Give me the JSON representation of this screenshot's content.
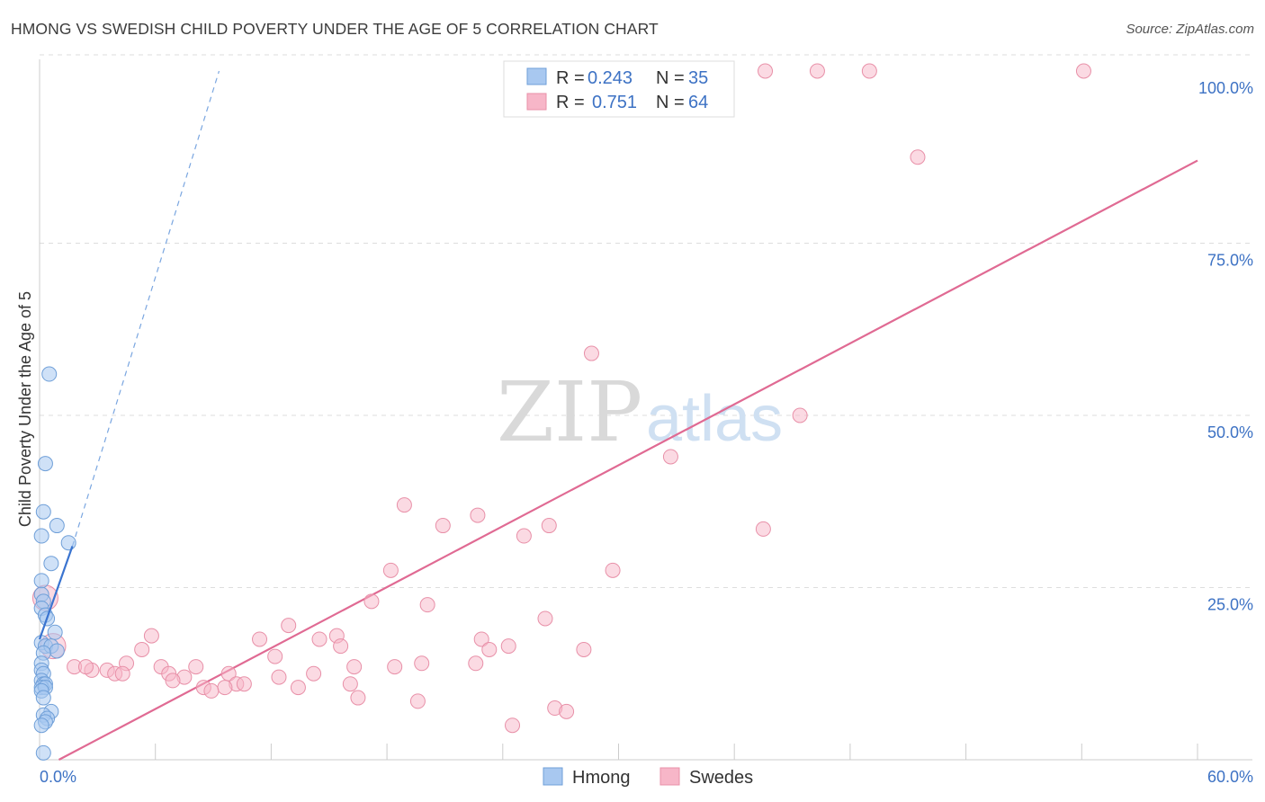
{
  "title": "HMONG VS SWEDISH CHILD POVERTY UNDER THE AGE OF 5 CORRELATION CHART",
  "source": "Source: ZipAtlas.com",
  "watermark": {
    "zip": "ZIP",
    "atlas": "atlas"
  },
  "colors": {
    "hmong_fill": "#a8c8f0",
    "hmong_stroke": "#6f9fd8",
    "hmong_line": "#3a74d0",
    "swedes_fill": "#f7b6c8",
    "swedes_stroke": "#e890a8",
    "swedes_line": "#e06a93",
    "accent_text": "#3d72c4",
    "grid": "#dddddd"
  },
  "legend_stats": [
    {
      "r_label": "R =",
      "r_value": "0.243",
      "n_label": "N =",
      "n_value": "35",
      "series": "Hmong"
    },
    {
      "r_label": "R =",
      "r_value": "0.751",
      "n_label": "N =",
      "n_value": "64",
      "series": "Swedes"
    }
  ],
  "chart_data": {
    "type": "scatter",
    "title": "HMONG VS SWEDISH CHILD POVERTY UNDER THE AGE OF 5 CORRELATION CHART",
    "xlabel": "",
    "ylabel": "Child Poverty Under the Age of 5",
    "xlim": [
      0,
      60
    ],
    "ylim": [
      0,
      100
    ],
    "x_tick_labels": [
      "0.0%",
      "60.0%"
    ],
    "y_ticks": [
      25,
      50,
      75,
      100
    ],
    "y_tick_labels": [
      "25.0%",
      "50.0%",
      "75.0%",
      "100.0%"
    ],
    "grid": true,
    "legend_position": "bottom-center",
    "series": [
      {
        "name": "Hmong",
        "r": 0.243,
        "n": 35,
        "trend_solid": {
          "x": [
            0.0,
            1.7
          ],
          "y": [
            17.5,
            31.0
          ]
        },
        "trend_dashed": {
          "x": [
            1.7,
            9.3
          ],
          "y": [
            31.0,
            100.0
          ]
        },
        "points": [
          [
            0.5,
            56.0
          ],
          [
            0.3,
            43.0
          ],
          [
            0.2,
            36.0
          ],
          [
            0.9,
            34.0
          ],
          [
            0.1,
            32.5
          ],
          [
            1.5,
            31.5
          ],
          [
            0.6,
            28.5
          ],
          [
            0.1,
            26.0
          ],
          [
            0.1,
            24.0
          ],
          [
            0.2,
            23.0
          ],
          [
            0.1,
            22.0
          ],
          [
            0.3,
            21.0
          ],
          [
            0.4,
            20.5
          ],
          [
            0.8,
            18.5
          ],
          [
            0.1,
            17.0
          ],
          [
            0.3,
            16.5
          ],
          [
            0.6,
            16.5
          ],
          [
            0.9,
            15.8
          ],
          [
            0.2,
            15.5
          ],
          [
            0.1,
            14.0
          ],
          [
            0.1,
            13.0
          ],
          [
            0.2,
            12.5
          ],
          [
            0.1,
            11.5
          ],
          [
            0.2,
            11.0
          ],
          [
            0.3,
            11.0
          ],
          [
            0.1,
            10.5
          ],
          [
            0.3,
            10.5
          ],
          [
            0.1,
            10.0
          ],
          [
            0.2,
            9.0
          ],
          [
            0.6,
            7.0
          ],
          [
            0.2,
            6.5
          ],
          [
            0.4,
            6.0
          ],
          [
            0.3,
            5.5
          ],
          [
            0.1,
            5.0
          ],
          [
            0.2,
            1.0
          ]
        ]
      },
      {
        "name": "Swedes",
        "r": 0.751,
        "n": 64,
        "trend_solid": {
          "x": [
            1.0,
            60.0
          ],
          "y": [
            0.0,
            87.0
          ]
        },
        "points": [
          [
            37.6,
            100.0
          ],
          [
            40.3,
            100.0
          ],
          [
            43.0,
            100.0
          ],
          [
            54.1,
            100.0
          ],
          [
            45.5,
            87.5
          ],
          [
            28.6,
            59.0
          ],
          [
            39.4,
            50.0
          ],
          [
            32.7,
            44.0
          ],
          [
            18.9,
            37.0
          ],
          [
            22.7,
            35.5
          ],
          [
            20.9,
            34.0
          ],
          [
            26.4,
            34.0
          ],
          [
            37.5,
            33.5
          ],
          [
            25.1,
            32.5
          ],
          [
            18.2,
            27.5
          ],
          [
            29.7,
            27.5
          ],
          [
            0.3,
            23.5
          ],
          [
            17.2,
            23.0
          ],
          [
            20.1,
            22.5
          ],
          [
            26.2,
            20.5
          ],
          [
            12.9,
            19.5
          ],
          [
            5.8,
            18.0
          ],
          [
            11.4,
            17.5
          ],
          [
            14.5,
            17.5
          ],
          [
            22.9,
            17.5
          ],
          [
            15.4,
            18.0
          ],
          [
            0.7,
            16.5
          ],
          [
            15.6,
            16.5
          ],
          [
            5.3,
            16.0
          ],
          [
            23.3,
            16.0
          ],
          [
            24.3,
            16.5
          ],
          [
            28.2,
            16.0
          ],
          [
            12.2,
            15.0
          ],
          [
            1.8,
            13.5
          ],
          [
            6.3,
            13.5
          ],
          [
            4.5,
            14.0
          ],
          [
            16.3,
            13.5
          ],
          [
            18.4,
            13.5
          ],
          [
            19.8,
            14.0
          ],
          [
            22.6,
            14.0
          ],
          [
            8.1,
            13.5
          ],
          [
            2.7,
            13.0
          ],
          [
            3.5,
            13.0
          ],
          [
            2.4,
            13.5
          ],
          [
            3.9,
            12.5
          ],
          [
            4.3,
            12.5
          ],
          [
            6.7,
            12.5
          ],
          [
            9.8,
            12.5
          ],
          [
            12.4,
            12.0
          ],
          [
            14.2,
            12.5
          ],
          [
            7.5,
            12.0
          ],
          [
            6.9,
            11.5
          ],
          [
            10.2,
            11.0
          ],
          [
            10.6,
            11.0
          ],
          [
            8.5,
            10.5
          ],
          [
            9.6,
            10.5
          ],
          [
            13.4,
            10.5
          ],
          [
            16.1,
            11.0
          ],
          [
            8.9,
            10.0
          ],
          [
            16.5,
            9.0
          ],
          [
            19.6,
            8.5
          ],
          [
            26.7,
            7.5
          ],
          [
            27.3,
            7.0
          ],
          [
            24.5,
            5.0
          ]
        ]
      }
    ]
  },
  "bottom_legend": [
    {
      "label": "Hmong",
      "series": "Hmong"
    },
    {
      "label": "Swedes",
      "series": "Swedes"
    }
  ]
}
